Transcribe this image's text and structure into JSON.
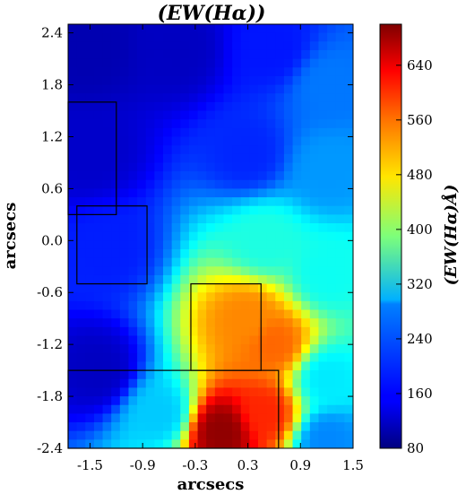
{
  "chart_data": {
    "type": "heatmap",
    "title": "(EW(Hα))",
    "xlabel": "arcsecs",
    "ylabel": "arcsecs",
    "xlim": [
      -1.75,
      1.5
    ],
    "ylim": [
      -2.4,
      2.5
    ],
    "xticks": [
      "-1.5",
      "-0.9",
      "-0.3",
      "0.3",
      "0.9",
      "1.5"
    ],
    "yticks": [
      "2.4",
      "1.8",
      "1.2",
      "0.6",
      "0.0",
      "-0.6",
      "-1.2",
      "-1.8",
      "-2.4"
    ],
    "colorbar": {
      "label": "(EW(Hα)Å)",
      "min": 80,
      "max": 700,
      "ticks": [
        "80",
        "160",
        "240",
        "320",
        "400",
        "480",
        "560",
        "640"
      ],
      "colormap": "jet"
    },
    "grid": false,
    "apertures": [
      {
        "x": [
          -1.75,
          -1.2
        ],
        "y": [
          0.3,
          1.6
        ]
      },
      {
        "x": [
          -1.65,
          -0.85
        ],
        "y": [
          -0.5,
          0.4
        ]
      },
      {
        "x": [
          -0.35,
          0.45
        ],
        "y": [
          -1.5,
          -0.5
        ]
      },
      {
        "x": [
          -1.75,
          0.65
        ],
        "y": [
          -2.4,
          -1.5
        ]
      }
    ],
    "regions": [
      {
        "x": -1.5,
        "y": 2.2,
        "value": 110
      },
      {
        "x": -0.5,
        "y": 2.2,
        "value": 120
      },
      {
        "x": 0.6,
        "y": 2.2,
        "value": 170
      },
      {
        "x": 1.2,
        "y": 1.8,
        "value": 230
      },
      {
        "x": -1.5,
        "y": 1.0,
        "value": 125
      },
      {
        "x": 0.3,
        "y": 1.0,
        "value": 180
      },
      {
        "x": 1.2,
        "y": 0.8,
        "value": 250
      },
      {
        "x": -1.3,
        "y": -0.1,
        "value": 175
      },
      {
        "x": 0.5,
        "y": 0.0,
        "value": 330
      },
      {
        "x": 1.2,
        "y": -0.4,
        "value": 320
      },
      {
        "x": -1.4,
        "y": -1.5,
        "value": 120
      },
      {
        "x": 0.3,
        "y": -0.9,
        "value": 540
      },
      {
        "x": 0.6,
        "y": -1.2,
        "value": 560
      },
      {
        "x": 1.2,
        "y": -1.6,
        "value": 300
      },
      {
        "x": -0.7,
        "y": -2.0,
        "value": 280
      },
      {
        "x": 0.0,
        "y": -2.2,
        "value": 690
      },
      {
        "x": 0.5,
        "y": -2.0,
        "value": 600
      },
      {
        "x": 1.2,
        "y": -2.3,
        "value": 240
      }
    ]
  }
}
